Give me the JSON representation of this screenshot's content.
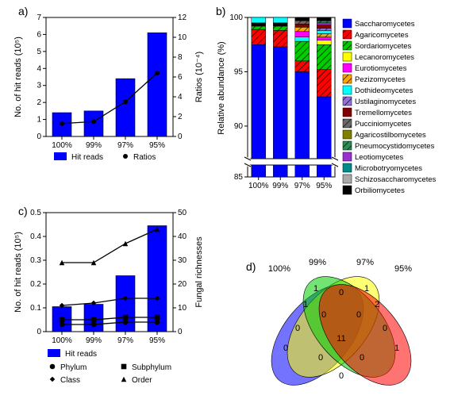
{
  "colors": {
    "blue": "#0000ff",
    "black": "#000000",
    "white": "#ffffff",
    "axis": "#000000",
    "tick_fontsize": 10,
    "label_fontsize": 11,
    "panel_fontsize": 14
  },
  "panelA": {
    "label": "a)",
    "type": "bar+line",
    "categories": [
      "100%",
      "99%",
      "97%",
      "95%"
    ],
    "bar_values": [
      1.4,
      1.5,
      3.4,
      6.1
    ],
    "bar_color": "#0000ff",
    "y_left": {
      "label": "No. of hit reads (10⁵)",
      "min": 0,
      "max": 7,
      "ticks": [
        0,
        1,
        2,
        3,
        4,
        5,
        6,
        7
      ]
    },
    "line_values": [
      1.3,
      1.5,
      3.5,
      6.4
    ],
    "line_color": "#000000",
    "y_right": {
      "label": "Ratios (10⁻⁴)",
      "min": 0,
      "max": 12,
      "ticks": [
        0,
        2,
        4,
        6,
        8,
        10,
        12
      ]
    },
    "legend": [
      {
        "swatch": "bar",
        "color": "#0000ff",
        "label": "Hit reads"
      },
      {
        "swatch": "circle",
        "color": "#000000",
        "label": "Ratios"
      }
    ]
  },
  "panelB": {
    "label": "b)",
    "type": "stacked-bar",
    "categories": [
      "100%",
      "99%",
      "97%",
      "95%"
    ],
    "ylabel": "Relative abundance (%)",
    "break_low": 85,
    "break_high": 87,
    "ytop": 100,
    "ticks_top": [
      90,
      95,
      100
    ],
    "ticks_bottom": [
      85
    ],
    "taxa": [
      {
        "name": "Saccharomycetes",
        "color": "#0000ff",
        "hatch": false
      },
      {
        "name": "Agaricomycetes",
        "color": "#ff0000",
        "hatch": true
      },
      {
        "name": "Sordariomycetes",
        "color": "#00cc00",
        "hatch": true
      },
      {
        "name": "Lecanoromycetes",
        "color": "#ffff00",
        "hatch": false
      },
      {
        "name": "Eurotiomycetes",
        "color": "#ff00ff",
        "hatch": false
      },
      {
        "name": "Pezizomycetes",
        "color": "#ffa500",
        "hatch": true
      },
      {
        "name": "Dothideomycetes",
        "color": "#00ffff",
        "hatch": false
      },
      {
        "name": "Ustilaginomycetes",
        "color": "#9370db",
        "hatch": true
      },
      {
        "name": "Tremellomycetes",
        "color": "#800000",
        "hatch": false
      },
      {
        "name": "Pucciniomycetes",
        "color": "#696969",
        "hatch": true
      },
      {
        "name": "Agaricostilbomycetes",
        "color": "#808000",
        "hatch": false
      },
      {
        "name": "Pneumocystidomycetes",
        "color": "#2e8b57",
        "hatch": true
      },
      {
        "name": "Leotiomycetes",
        "color": "#9932cc",
        "hatch": false
      },
      {
        "name": "Microbotryomycetes",
        "color": "#008b8b",
        "hatch": false
      },
      {
        "name": "Schizosaccharomycetes",
        "color": "#a9a9a9",
        "hatch": false
      },
      {
        "name": "Orbiliomycetes",
        "color": "#000000",
        "hatch": false
      }
    ],
    "stacks": [
      [
        [
          "Saccharomycetes",
          97.5
        ],
        [
          "Agaricomycetes",
          1.4
        ],
        [
          "Sordariomycetes",
          0.3
        ],
        [
          "Orbiliomycetes",
          0.3
        ],
        [
          "Dothideomycetes",
          0.5
        ]
      ],
      [
        [
          "Saccharomycetes",
          97.3
        ],
        [
          "Agaricomycetes",
          1.5
        ],
        [
          "Sordariomycetes",
          0.4
        ],
        [
          "Orbiliomycetes",
          0.3
        ],
        [
          "Dothideomycetes",
          0.5
        ]
      ],
      [
        [
          "Saccharomycetes",
          95.0
        ],
        [
          "Agaricomycetes",
          1.0
        ],
        [
          "Sordariomycetes",
          1.8
        ],
        [
          "Dothideomycetes",
          0.4
        ],
        [
          "Eurotiomycetes",
          0.5
        ],
        [
          "Pezizomycetes",
          0.4
        ],
        [
          "Tremellomycetes",
          0.3
        ],
        [
          "Pucciniomycetes",
          0.3
        ],
        [
          "Orbiliomycetes",
          0.3
        ]
      ],
      [
        [
          "Saccharomycetes",
          92.7
        ],
        [
          "Agaricomycetes",
          2.5
        ],
        [
          "Sordariomycetes",
          2.3
        ],
        [
          "Lecanoromycetes",
          0.4
        ],
        [
          "Eurotiomycetes",
          0.3
        ],
        [
          "Pezizomycetes",
          0.3
        ],
        [
          "Dothideomycetes",
          0.3
        ],
        [
          "Ustilaginomycetes",
          0.2
        ],
        [
          "Tremellomycetes",
          0.3
        ],
        [
          "Leotiomycetes",
          0.2
        ],
        [
          "Pneumocystidomycetes",
          0.2
        ],
        [
          "Orbiliomycetes",
          0.3
        ]
      ]
    ]
  },
  "panelC": {
    "label": "c)",
    "type": "bar+multiline",
    "categories": [
      "100%",
      "99%",
      "97%",
      "95%"
    ],
    "bar_values": [
      0.105,
      0.115,
      0.235,
      0.445
    ],
    "bar_color": "#0000ff",
    "y_left": {
      "label": "No. of hit reads (10⁵)",
      "min": 0,
      "max": 0.5,
      "ticks": [
        0,
        0.1,
        0.2,
        0.3,
        0.4,
        0.5
      ]
    },
    "y_right": {
      "label": "Fungal richnesses",
      "min": 0,
      "max": 50,
      "ticks": [
        0,
        10,
        20,
        30,
        40,
        50
      ]
    },
    "lines": [
      {
        "marker": "circle",
        "label": "Phylum",
        "values": [
          3,
          3,
          4,
          4
        ]
      },
      {
        "marker": "square",
        "label": "Subphylum",
        "values": [
          5,
          5,
          6,
          6
        ]
      },
      {
        "marker": "diamond",
        "label": "Class",
        "values": [
          11,
          12,
          14,
          14
        ]
      },
      {
        "marker": "triangle",
        "label": "Order",
        "values": [
          29,
          29,
          37,
          43
        ]
      }
    ],
    "legend_bar": {
      "swatch": "bar",
      "color": "#0000ff",
      "label": "Hit reads"
    }
  },
  "panelD": {
    "label": "d)",
    "type": "venn4",
    "set_labels": [
      "100%",
      "99%",
      "97%",
      "95%"
    ],
    "set_colors": [
      "#0000ff",
      "#ffff00",
      "#00cc00",
      "#ff0000"
    ],
    "opacity": 0.55,
    "region_counts": {
      "1000": "0",
      "0100": "1",
      "0010": "1",
      "0001": "1",
      "1100": "1",
      "1010": "0",
      "1001": "0",
      "0110": "0",
      "0101": "0",
      "0011": "2",
      "1110": "0",
      "1101": "0",
      "1011": "0",
      "0111": "0",
      "1111": "11"
    }
  }
}
